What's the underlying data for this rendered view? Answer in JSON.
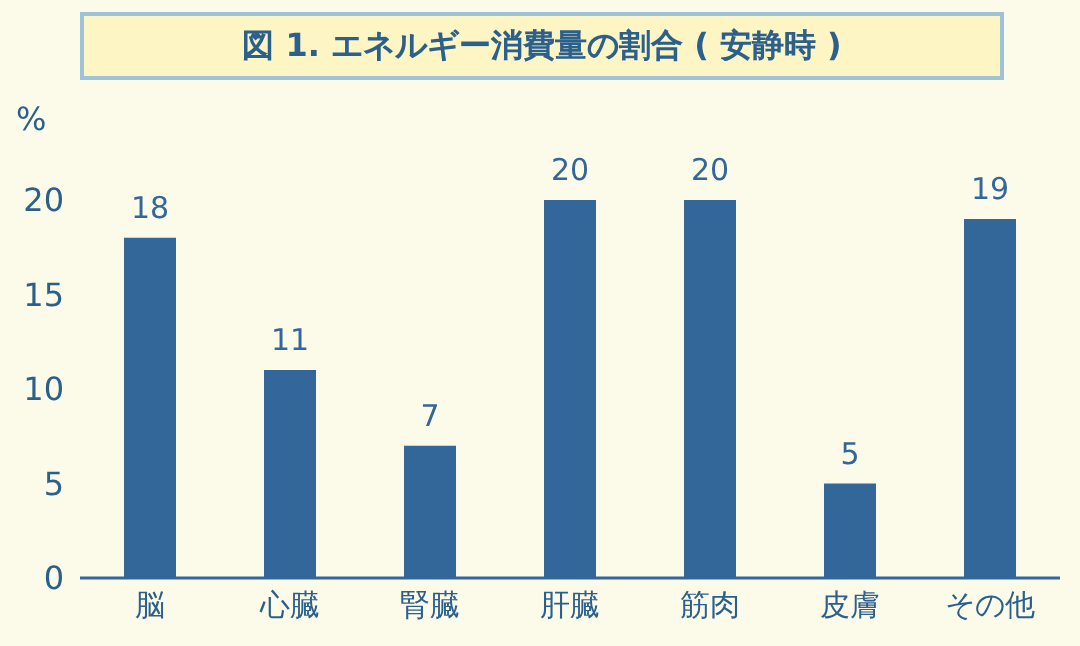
{
  "chart_data": {
    "type": "bar",
    "title": "図 1. エネルギー消費量の割合 ( 安静時 )",
    "ylabel": "%",
    "categories": [
      "脳",
      "心臓",
      "腎臓",
      "肝臓",
      "筋肉",
      "皮膚",
      "その他"
    ],
    "values": [
      18,
      11,
      7,
      20,
      20,
      5,
      19
    ],
    "color": "#336699",
    "ylim": [
      0,
      20
    ],
    "yticks": [
      0,
      5,
      10,
      15,
      20
    ],
    "data_labels": true
  }
}
